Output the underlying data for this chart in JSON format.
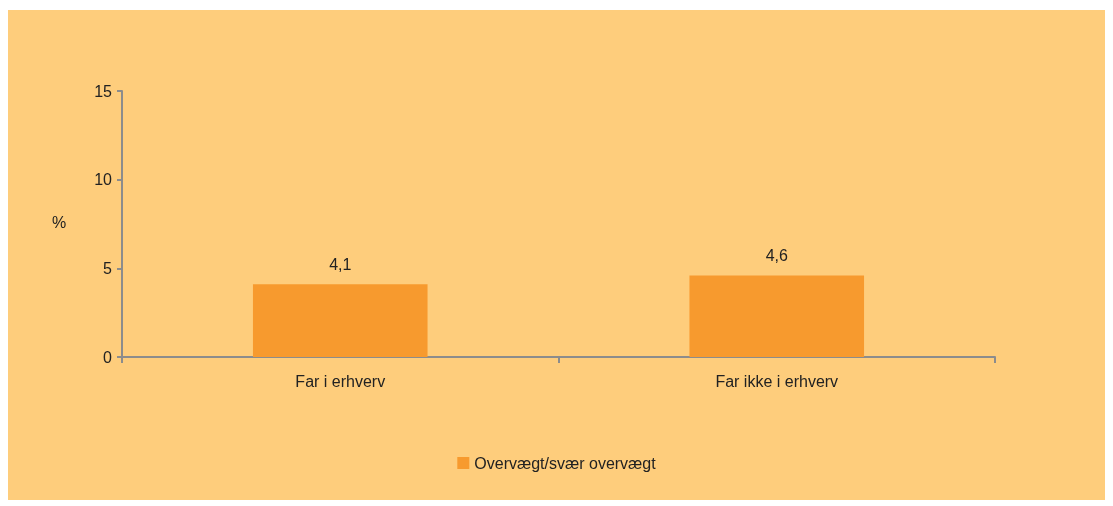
{
  "chart_data": {
    "type": "bar",
    "ylabel": "%",
    "categories": [
      "Far i erhverv",
      "Far ikke i erhverv"
    ],
    "series": [
      {
        "name": "Overvægt/svær overvægt",
        "color": "#f79a2e",
        "values": [
          4.1,
          4.6
        ],
        "value_labels": [
          "4,1",
          "4,6"
        ]
      }
    ],
    "ylim": [
      0,
      15
    ],
    "yticks": [
      0,
      5,
      10,
      15
    ],
    "grid": false,
    "legend": "bottom"
  }
}
